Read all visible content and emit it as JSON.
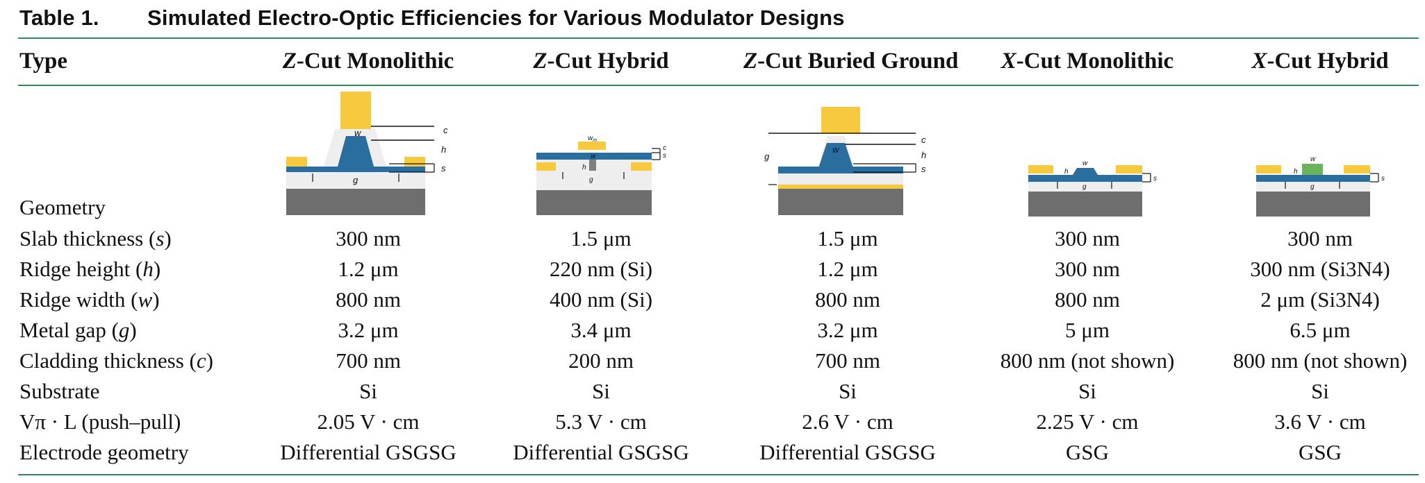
{
  "table": {
    "number": "Table 1.",
    "caption": "Simulated Electro-Optic Efficiencies for Various Modulator Designs"
  },
  "header": {
    "type": "Type",
    "columns": [
      {
        "cut": "Z",
        "rest": "-Cut Monolithic"
      },
      {
        "cut": "Z",
        "rest": "-Cut Hybrid"
      },
      {
        "cut": "Z",
        "rest": "-Cut Buried Ground"
      },
      {
        "cut": "X",
        "rest": "-Cut Monolithic"
      },
      {
        "cut": "X",
        "rest": "-Cut Hybrid"
      }
    ]
  },
  "geometry": {
    "label": "Geometry",
    "diagram_labels": {
      "c": "c",
      "h": "h",
      "s": "s",
      "w": "w",
      "g": "g",
      "wm": "w",
      "wm_sub": "m"
    },
    "colors": {
      "metal": "#f7c93e",
      "lithium_niobate": "#2a6ea0",
      "silicon": "#7f7f7f",
      "cladding": "#eeeeee",
      "si3n4": "#6cb35e",
      "substrate": "#6e6e6e"
    }
  },
  "rows": [
    {
      "label": "Slab thickness (",
      "var": "s",
      "label_end": ")",
      "values": [
        "300 nm",
        "1.5 μm",
        "1.5 μm",
        "300 nm",
        "300 nm"
      ]
    },
    {
      "label": "Ridge height (",
      "var": "h",
      "label_end": ")",
      "values": [
        "1.2 μm",
        "220 nm (Si)",
        "1.2 μm",
        "300 nm",
        "300 nm (Si3N4)"
      ]
    },
    {
      "label": "Ridge width (",
      "var": "w",
      "label_end": ")",
      "values": [
        "800 nm",
        "400 nm (Si)",
        "800 nm",
        "800 nm",
        "2 μm (Si3N4)"
      ]
    },
    {
      "label": "Metal gap (",
      "var": "g",
      "label_end": ")",
      "values": [
        "3.2 μm",
        "3.4 μm",
        "3.2 μm",
        "5 μm",
        "6.5 μm"
      ]
    },
    {
      "label": "Cladding thickness (",
      "var": "c",
      "label_end": ")",
      "values": [
        "700 nm",
        "200 nm",
        "700 nm",
        "800 nm (not shown)",
        "800 nm (not shown)"
      ]
    },
    {
      "label": "Substrate",
      "var": "",
      "label_end": "",
      "values": [
        "Si",
        "Si",
        "Si",
        "Si",
        "Si"
      ]
    },
    {
      "label": "Vπ · L (push–pull)",
      "var": "",
      "label_end": "",
      "values": [
        "2.05 V · cm",
        "5.3 V · cm",
        "2.6 V · cm",
        "2.25 V · cm",
        "3.6 V · cm"
      ]
    },
    {
      "label": "Electrode geometry",
      "var": "",
      "label_end": "",
      "values": [
        "Differential GSGSG",
        "Differential GSGSG",
        "Differential GSGSG",
        "GSG",
        "GSG"
      ]
    }
  ]
}
